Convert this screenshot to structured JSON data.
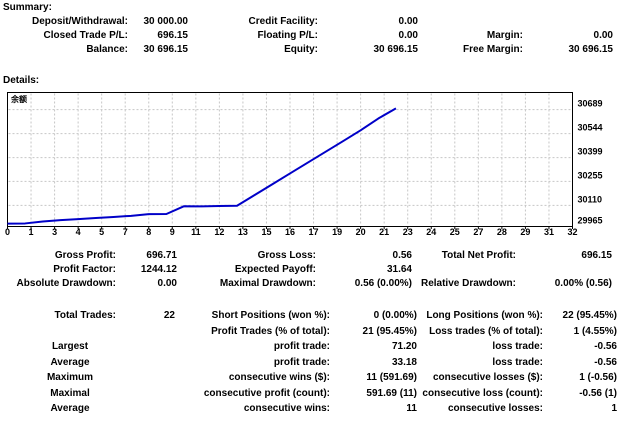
{
  "summary": {
    "title": "Summary:",
    "rows": [
      [
        "Deposit/Withdrawal:",
        "30 000.00",
        "Credit Facility:",
        "0.00",
        "",
        ""
      ],
      [
        "Closed Trade P/L:",
        "696.15",
        "Floating P/L:",
        "0.00",
        "Margin:",
        "0.00"
      ],
      [
        "Balance:",
        "30 696.15",
        "Equity:",
        "30 696.15",
        "Free Margin:",
        "30 696.15"
      ]
    ]
  },
  "details": {
    "title": "Details:",
    "profit_stats_rows": [
      [
        "Gross Profit:",
        "696.71",
        "Gross Loss:",
        "0.56",
        "Total Net Profit:",
        "696.15"
      ],
      [
        "Profit Factor:",
        "1244.12",
        "Expected Payoff:",
        "31.64",
        "",
        ""
      ],
      [
        "Absolute Drawdown:",
        "0.00",
        "Maximal Drawdown:",
        "0.56 (0.00%)",
        "Relative Drawdown:",
        "0.00% (0.56)"
      ]
    ],
    "trade_stats_rows": [
      [
        "Total Trades:",
        "22",
        "Short Positions (won %):",
        "0 (0.00%)",
        "Long Positions (won %):",
        "22 (95.45%)"
      ],
      [
        "",
        "",
        "Profit Trades (% of total):",
        "21 (95.45%)",
        "Loss trades (% of total):",
        "1 (4.55%)"
      ],
      [
        "Largest",
        "",
        "profit trade:",
        "71.20",
        "loss trade:",
        "-0.56"
      ],
      [
        "Average",
        "",
        "profit trade:",
        "33.18",
        "loss trade:",
        "-0.56"
      ],
      [
        "Maximum",
        "",
        "consecutive wins ($):",
        "11 (591.69)",
        "consecutive losses ($):",
        "1 (-0.56)"
      ],
      [
        "Maximal",
        "",
        "consecutive profit (count):",
        "591.69 (11)",
        "consecutive loss (count):",
        "-0.56 (1)"
      ],
      [
        "Average",
        "",
        "consecutive wins:",
        "11",
        "consecutive losses:",
        "1"
      ]
    ]
  },
  "chart_data": {
    "type": "line",
    "title": "余额",
    "legend": "余额",
    "x_range": [
      0,
      32
    ],
    "x_tick_labels": [
      "0",
      "1",
      "3",
      "4",
      "5",
      "7",
      "8",
      "9",
      "11",
      "12",
      "13",
      "15",
      "16",
      "17",
      "19",
      "20",
      "21",
      "23",
      "24",
      "25",
      "27",
      "28",
      "29",
      "31",
      "32"
    ],
    "y_ticks": [
      29965,
      30110,
      30255,
      30399,
      30544,
      30689
    ],
    "ylim": [
      29965,
      30765
    ],
    "grid": true,
    "legend_position": "top-left",
    "y_axis_side": "right",
    "line_color": "#0000C8",
    "grid_color": "#c6c6c6",
    "series": [
      {
        "name": "余额",
        "x": [
          0,
          1,
          2,
          3,
          4,
          5,
          6,
          7,
          8,
          9,
          10,
          11,
          12,
          13,
          14,
          15,
          16,
          17,
          18,
          19,
          20,
          21,
          22
        ],
        "values": [
          30000.0,
          30001.0,
          30013.0,
          30021.0,
          30027.0,
          30034.0,
          30040.0,
          30047.0,
          30057.0,
          30058.0,
          30105.02,
          30104.46,
          30106.0,
          30108.0,
          30173.0,
          30238.0,
          30303.0,
          30368.0,
          30433.0,
          30498.0,
          30563.7,
          30634.9,
          30696.15
        ]
      }
    ]
  }
}
